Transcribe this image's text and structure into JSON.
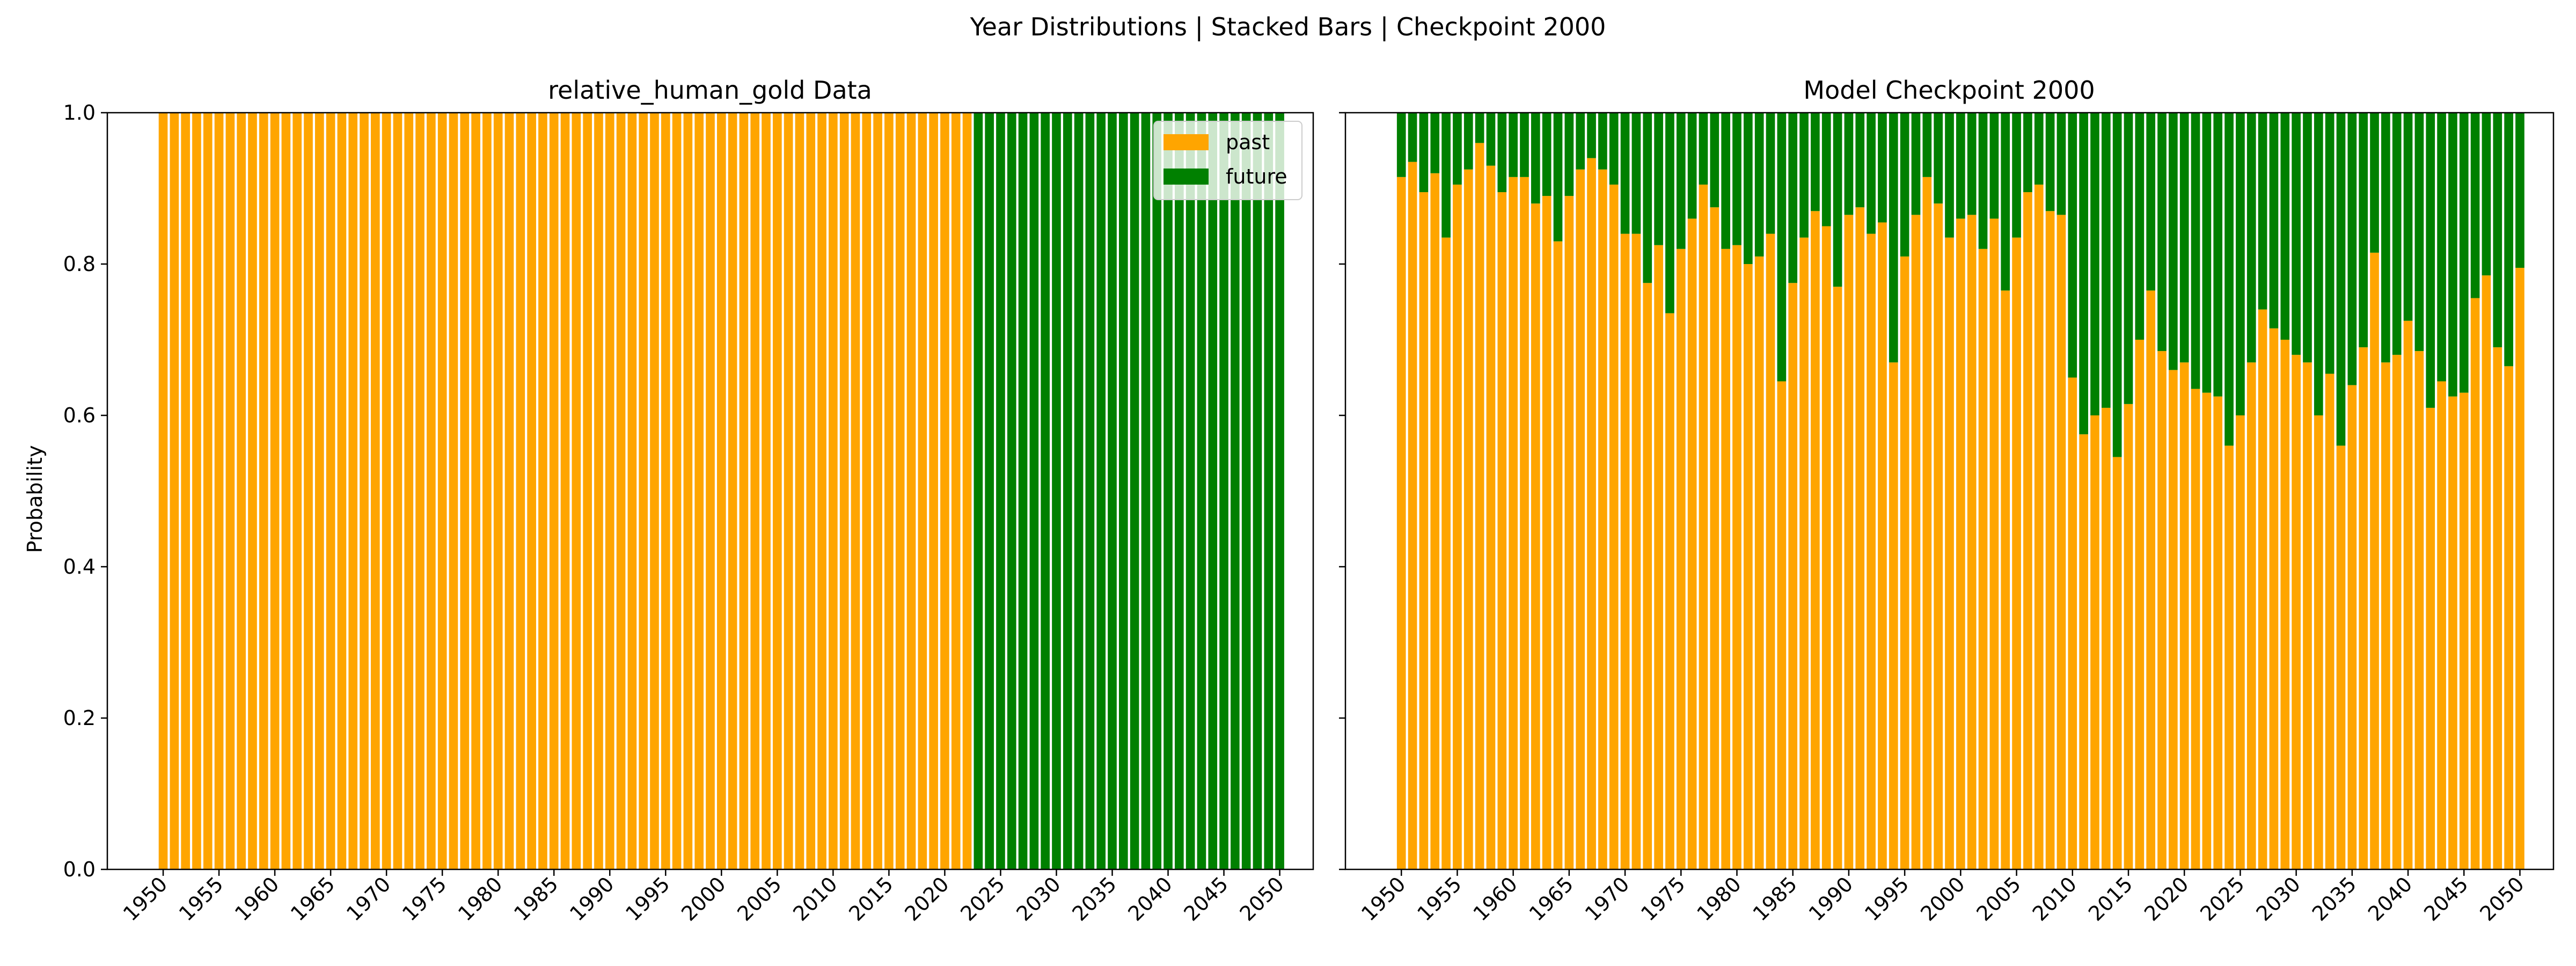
{
  "suptitle": "Year Distributions | Stacked Bars | Checkpoint 2000",
  "colors": {
    "past": "#FFA500",
    "future": "#008000",
    "axis": "#000000",
    "background": "#ffffff"
  },
  "chart_data": [
    {
      "type": "bar",
      "stacked": true,
      "title": "relative_human_gold Data",
      "ylabel": "Probability",
      "xlabel": "",
      "ylim": [
        0,
        1.0
      ],
      "xlim": [
        1945,
        2053
      ],
      "yticks": [
        "0.0",
        "0.2",
        "0.4",
        "0.6",
        "0.8",
        "1.0"
      ],
      "xticks": [
        "1950",
        "1955",
        "1960",
        "1965",
        "1970",
        "1975",
        "1980",
        "1985",
        "1990",
        "1995",
        "2000",
        "2005",
        "2010",
        "2015",
        "2020",
        "2025",
        "2030",
        "2035",
        "2040",
        "2045",
        "2050"
      ],
      "legend": {
        "position": "top-right",
        "entries": [
          "past",
          "future"
        ]
      },
      "x_start": 1950,
      "x_end": 2050,
      "series": [
        {
          "name": "past",
          "rule": "value 1.0 for years 1950–2022, 0 afterwards"
        },
        {
          "name": "future",
          "rule": "value 1.0 for years 2023–2050, 0 before"
        }
      ],
      "future_start_year": 2023
    },
    {
      "type": "bar",
      "stacked": true,
      "title": "Model Checkpoint 2000",
      "ylabel": "",
      "xlabel": "",
      "ylim": [
        0,
        1.0
      ],
      "xlim": [
        1945,
        2053
      ],
      "xticks": [
        "1950",
        "1955",
        "1960",
        "1965",
        "1970",
        "1975",
        "1980",
        "1985",
        "1990",
        "1995",
        "2000",
        "2005",
        "2010",
        "2015",
        "2020",
        "2025",
        "2030",
        "2035",
        "2040",
        "2045",
        "2050"
      ],
      "x_start": 1950,
      "x_end": 2050,
      "series_note": "past = values below; future = 1 - past",
      "past": [
        0.915,
        0.935,
        0.895,
        0.92,
        0.835,
        0.905,
        0.925,
        0.96,
        0.93,
        0.895,
        0.915,
        0.915,
        0.88,
        0.89,
        0.83,
        0.89,
        0.925,
        0.94,
        0.925,
        0.905,
        0.84,
        0.84,
        0.775,
        0.825,
        0.735,
        0.82,
        0.86,
        0.905,
        0.875,
        0.82,
        0.825,
        0.8,
        0.81,
        0.84,
        0.645,
        0.775,
        0.835,
        0.87,
        0.85,
        0.77,
        0.865,
        0.875,
        0.84,
        0.855,
        0.67,
        0.81,
        0.865,
        0.915,
        0.88,
        0.835,
        0.86,
        0.865,
        0.82,
        0.86,
        0.765,
        0.835,
        0.895,
        0.905,
        0.87,
        0.865,
        0.65,
        0.575,
        0.6,
        0.61,
        0.545,
        0.615,
        0.7,
        0.765,
        0.685,
        0.66,
        0.67,
        0.635,
        0.63,
        0.625,
        0.56,
        0.6,
        0.67,
        0.74,
        0.715,
        0.7,
        0.68,
        0.67,
        0.6,
        0.655,
        0.56,
        0.64,
        0.69,
        0.815,
        0.67,
        0.68,
        0.725,
        0.685,
        0.61,
        0.645,
        0.625,
        0.63,
        0.755,
        0.785,
        0.69,
        0.665,
        0.795
      ]
    }
  ]
}
